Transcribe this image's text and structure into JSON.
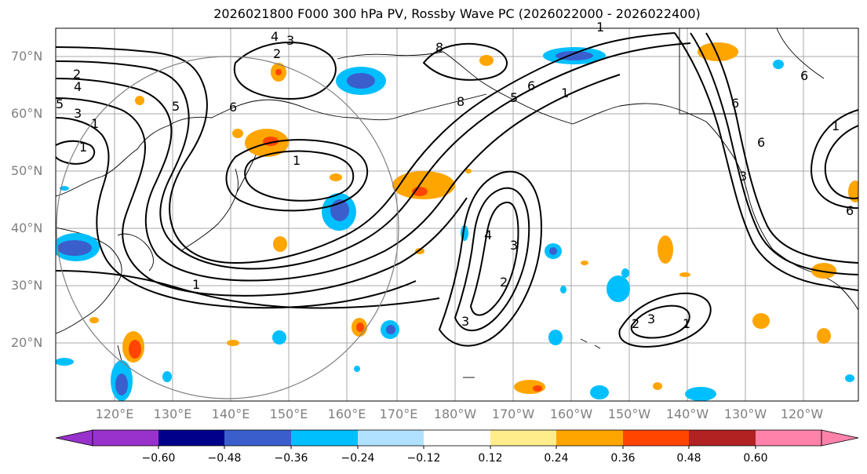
{
  "title": "2026021800 F000 300 hPa PV, Rossby Wave PC (2026022000 - 2026022400)",
  "lat_labels": [
    "70°N",
    "60°N",
    "50°N",
    "40°N",
    "30°N",
    "20°N"
  ],
  "lon_labels": [
    "120°E",
    "130°E",
    "140°E",
    "150°E",
    "160°E",
    "170°E",
    "180°W",
    "170°W",
    "160°W",
    "150°W",
    "140°W",
    "130°W",
    "120°W"
  ],
  "colorbar": {
    "colors": [
      "#9932cc",
      "#00008b",
      "#3a5fcd",
      "#00bfff",
      "#b0e2ff",
      "#ffffff",
      "#ffec8b",
      "#ffa500",
      "#ff4500",
      "#b22222",
      "#ff82ab"
    ],
    "ticks": [
      "−0.60",
      "−0.48",
      "−0.36",
      "−0.24",
      "−0.12",
      "0.12",
      "0.24",
      "0.36",
      "0.48",
      "0.60"
    ]
  },
  "contour_labels": [
    "1",
    "2",
    "3",
    "4",
    "5",
    "6",
    "8",
    "1",
    "2",
    "3",
    "4",
    "5",
    "6",
    "1",
    "2",
    "3",
    "1",
    "3",
    "4",
    "6",
    "8"
  ]
}
